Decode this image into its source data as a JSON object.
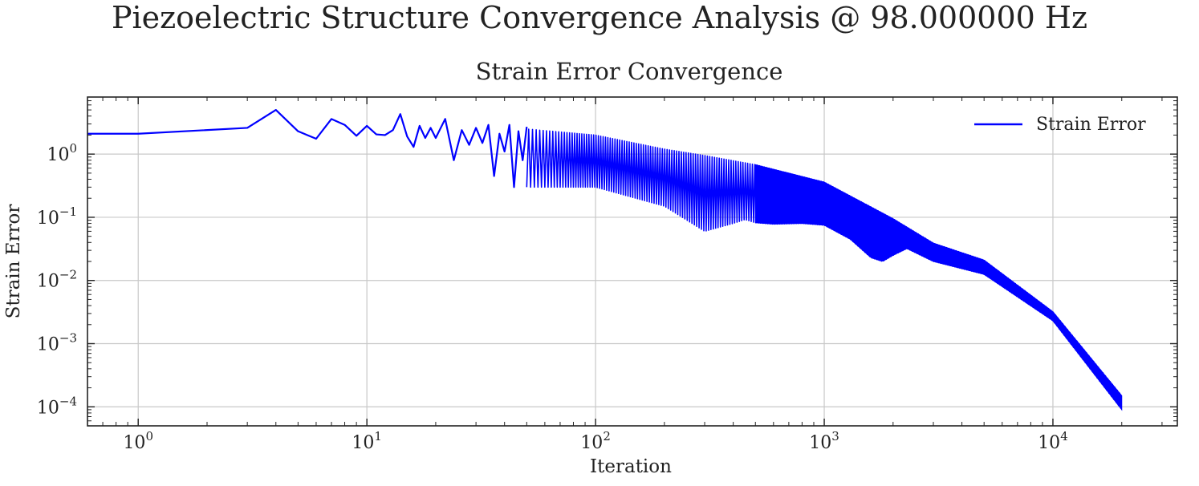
{
  "figure": {
    "suptitle": "Piezoelectric Structure Convergence Analysis @ 98.000000 Hz"
  },
  "chart_data": {
    "type": "line",
    "title": "Strain Error Convergence",
    "xlabel": "Iteration",
    "ylabel": "Strain Error",
    "xscale": "log",
    "yscale": "log",
    "xlim": [
      0.6,
      35000
    ],
    "ylim": [
      5e-05,
      8
    ],
    "grid": true,
    "legend_position": "top-right",
    "x_tick_labels": [
      {
        "base": "10",
        "exp": "0",
        "value": 1
      },
      {
        "base": "10",
        "exp": "1",
        "value": 10
      },
      {
        "base": "10",
        "exp": "2",
        "value": 100
      },
      {
        "base": "10",
        "exp": "3",
        "value": 1000
      },
      {
        "base": "10",
        "exp": "4",
        "value": 10000
      }
    ],
    "y_tick_labels": [
      {
        "base": "10",
        "exp": "0",
        "value": 1
      },
      {
        "base": "10",
        "exp": "−1",
        "value": 0.1
      },
      {
        "base": "10",
        "exp": "−2",
        "value": 0.01
      },
      {
        "base": "10",
        "exp": "−3",
        "value": 0.001
      },
      {
        "base": "10",
        "exp": "−4",
        "value": 0.0001
      }
    ],
    "series": [
      {
        "name": "Strain Error",
        "color": "#0000ff",
        "x": [
          0.6,
          1,
          3,
          4,
          5,
          6,
          7,
          8,
          9,
          10,
          11,
          12,
          13,
          14,
          15,
          16,
          17,
          18,
          19,
          20,
          22,
          24,
          26,
          28,
          30,
          32,
          34,
          36,
          38,
          40,
          42,
          44,
          46,
          48,
          50
        ],
        "y": [
          2.1,
          2.1,
          2.6,
          5.0,
          2.3,
          1.75,
          3.6,
          2.9,
          1.95,
          2.8,
          2.05,
          2.0,
          2.4,
          4.3,
          1.9,
          1.3,
          2.8,
          1.8,
          2.6,
          1.8,
          3.6,
          0.8,
          2.4,
          1.4,
          2.6,
          1.5,
          2.9,
          0.45,
          2.1,
          1.1,
          2.9,
          0.3,
          2.3,
          0.8,
          2.7
        ]
      }
    ],
    "upper_envelope": {
      "x": [
        50,
        100,
        200,
        300,
        500,
        1000,
        2000,
        3000,
        5000,
        10000,
        20000
      ],
      "y": [
        2.5,
        2.0,
        1.2,
        0.95,
        0.68,
        0.36,
        0.095,
        0.039,
        0.021,
        0.0032,
        0.00015
      ]
    },
    "lower_envelope": {
      "x": [
        50,
        100,
        200,
        300,
        400,
        450,
        500,
        600,
        800,
        1000,
        1300,
        1600,
        1800,
        2000,
        2300,
        3000,
        5000,
        10000,
        20000
      ],
      "y": [
        0.3,
        0.3,
        0.15,
        0.06,
        0.08,
        0.092,
        0.082,
        0.078,
        0.08,
        0.075,
        0.045,
        0.023,
        0.02,
        0.025,
        0.032,
        0.02,
        0.0125,
        0.0023,
        9e-05
      ]
    }
  }
}
